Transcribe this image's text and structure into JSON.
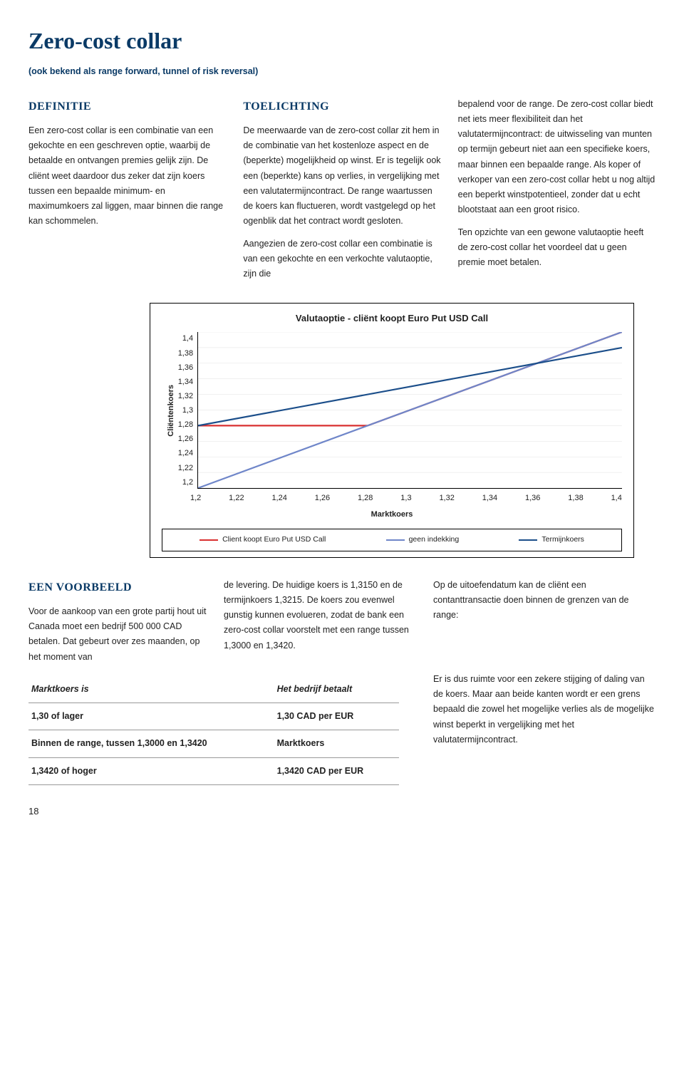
{
  "title": "Zero-cost collar",
  "subtitle": "(ook bekend als range forward, tunnel of risk reversal)",
  "sections": {
    "definitie": {
      "heading": "DEFINITIE",
      "body": "Een zero-cost collar is een combinatie van een gekochte en een geschreven optie, waarbij de betaalde en ontvangen premies gelijk zijn. De cliënt weet daardoor dus zeker dat zijn koers tussen een bepaalde minimum- en maximumkoers zal liggen, maar binnen die range kan schommelen."
    },
    "toelichting": {
      "heading": "TOELICHTING",
      "p1": "De meerwaarde van de zero-cost collar zit hem in de combinatie van het kostenloze aspect en de (beperkte) mogelijkheid op winst. Er is tegelijk ook een (beperkte) kans op verlies, in vergelijking met een valutatermijncontract. De range waartussen de koers kan fluctueren, wordt vastgelegd op het ogenblik dat het contract wordt gesloten.",
      "p2": "Aangezien de zero-cost collar een combinatie is van een gekochte en een verkochte valutaoptie, zijn die"
    },
    "right": {
      "p1": "bepalend voor de range. De zero-cost collar biedt net iets meer flexibiliteit dan het valutatermijncontract: de uitwisseling van munten op termijn gebeurt niet aan een specifieke koers, maar binnen een bepaalde range. Als koper of verkoper van een zero-cost collar hebt u nog altijd een beperkt winstpotentieel, zonder dat u echt blootstaat aan een groot risico.",
      "p2": "Ten opzichte van een gewone valutaoptie heeft de zero-cost collar het voordeel dat u geen premie moet betalen."
    },
    "voorbeeld": {
      "heading": "EEN VOORBEELD",
      "p1": "Voor de aankoop van een grote partij hout uit Canada moet een bedrijf 500 000 CAD betalen. Dat gebeurt over zes maanden, op het moment van",
      "p2": "de levering. De huidige koers is 1,3150 en de termijnkoers 1,3215. De koers zou evenwel gunstig kunnen evolueren, zodat de bank een zero-cost collar voorstelt met een range tussen 1,3000 en 1,3420.",
      "p3": "Op de uitoefendatum kan de cliënt een contanttransactie doen binnen de grenzen van de range:",
      "p4": "Er is dus ruimte voor een zekere stijging of daling van de koers. Maar aan beide kanten wordt er een grens bepaald die zowel het mogelijke verlies als de mogelijke winst beperkt in vergelijking met het valutatermijncontract."
    }
  },
  "chart": {
    "title": "Valutaoptie - cliënt koopt Euro Put USD Call",
    "ylabel": "Cliëntenkoers",
    "xlabel": "Marktkoers",
    "yticks": [
      "1,4",
      "1,38",
      "1,36",
      "1,34",
      "1,32",
      "1,3",
      "1,28",
      "1,26",
      "1,24",
      "1,22",
      "1,2"
    ],
    "xticks": [
      "1,2",
      "1,22",
      "1,24",
      "1,26",
      "1,28",
      "1,3",
      "1,32",
      "1,34",
      "1,36",
      "1,38",
      "1,4"
    ],
    "ymin": 1.2,
    "ymax": 1.4,
    "xmin": 1.2,
    "xmax": 1.4,
    "grid_color": "#cccccc",
    "background_color": "#ffffff",
    "series": [
      {
        "name": "Client koopt Euro Put USD Call",
        "color": "#d93030",
        "width": 2.2,
        "points": [
          [
            1.2,
            1.28
          ],
          [
            1.28,
            1.28
          ],
          [
            1.3,
            1.3
          ],
          [
            1.4,
            1.4
          ]
        ]
      },
      {
        "name": "geen indekking",
        "color": "#6f86c9",
        "width": 2.2,
        "points": [
          [
            1.2,
            1.2
          ],
          [
            1.4,
            1.4
          ]
        ]
      },
      {
        "name": "Termijnkoers",
        "color": "#1b4e8a",
        "width": 2.2,
        "points": [
          [
            1.2,
            1.28
          ],
          [
            1.4,
            1.38
          ]
        ]
      }
    ],
    "legend": [
      {
        "label": "Client koopt Euro Put USD Call",
        "color": "#d93030"
      },
      {
        "label": "geen indekking",
        "color": "#6f86c9"
      },
      {
        "label": "Termijnkoers",
        "color": "#1b4e8a"
      }
    ]
  },
  "table": {
    "headers": [
      "Marktkoers is",
      "Het bedrijf betaalt"
    ],
    "rows": [
      [
        "1,30 of lager",
        "1,30 CAD per EUR"
      ],
      [
        "Binnen de range, tussen 1,3000 en 1,3420",
        "Marktkoers"
      ],
      [
        "1,3420 of hoger",
        "1,3420 CAD per EUR"
      ]
    ]
  },
  "pageNumber": "18"
}
